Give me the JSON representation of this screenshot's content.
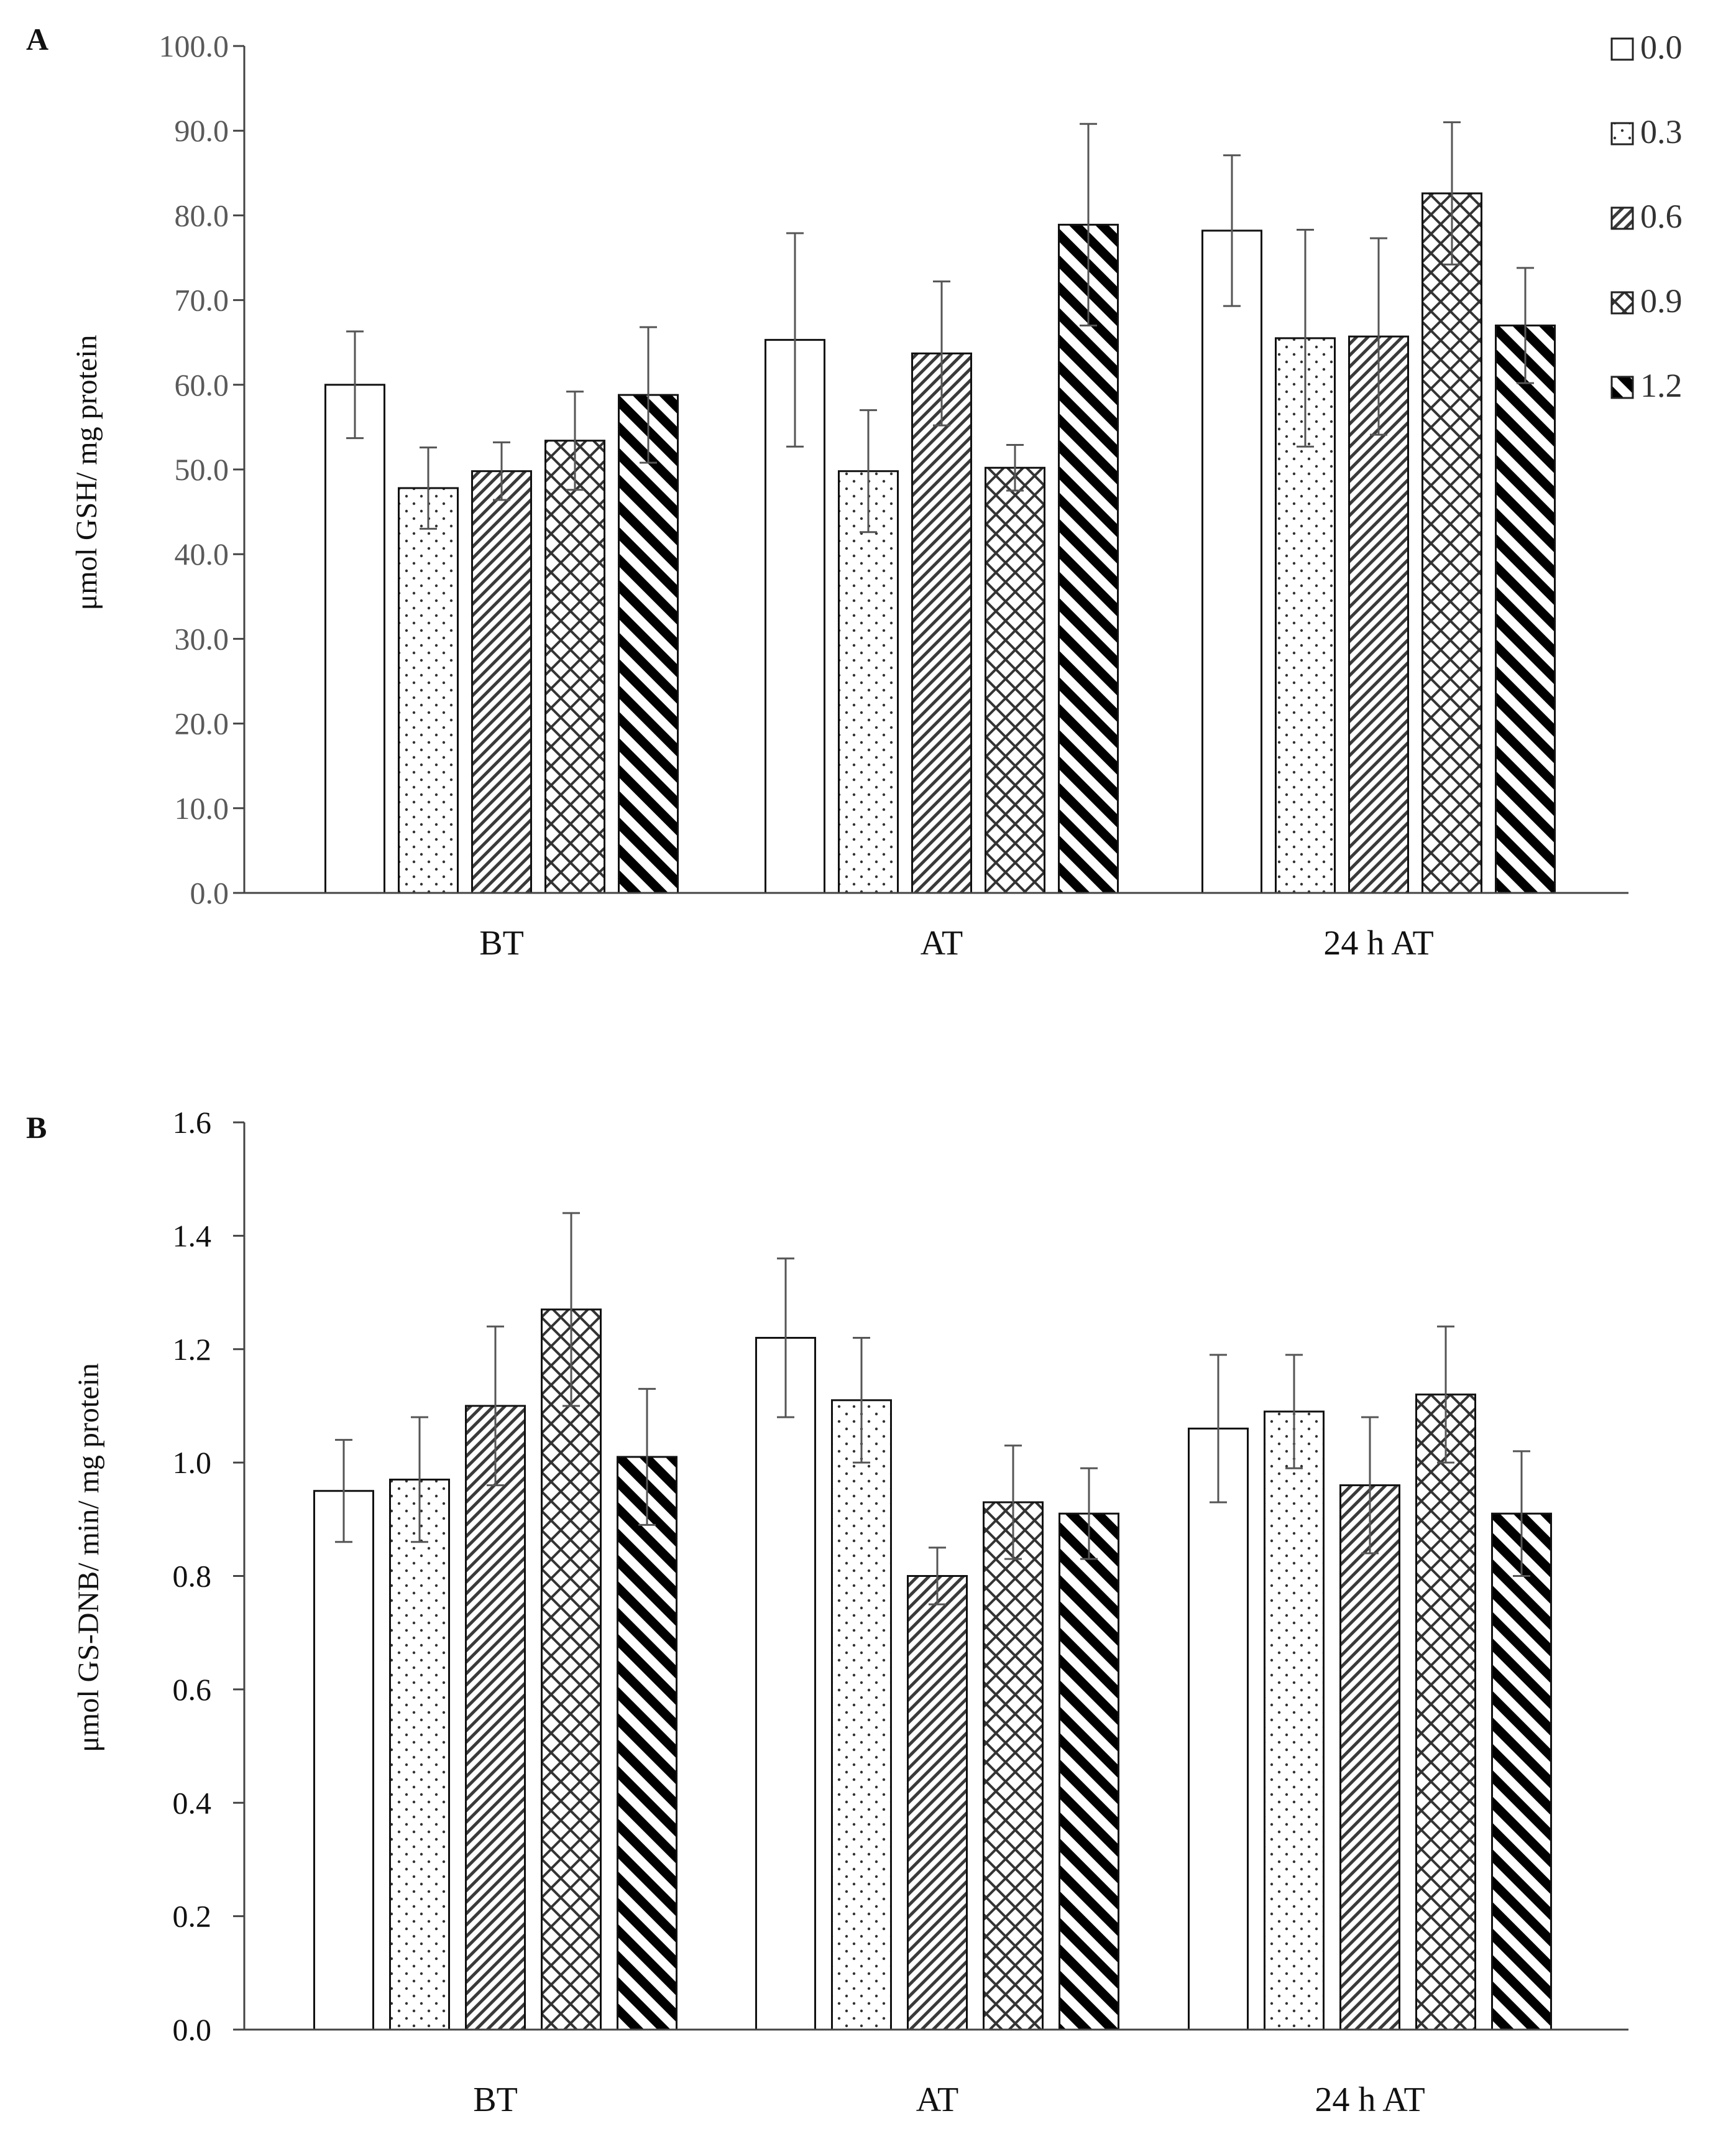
{
  "legend": {
    "entries": [
      {
        "label": "0.0",
        "pattern": "blank"
      },
      {
        "label": "0.3",
        "pattern": "dots"
      },
      {
        "label": "0.6",
        "pattern": "diag-thin"
      },
      {
        "label": "0.9",
        "pattern": "cross"
      },
      {
        "label": "1.2",
        "pattern": "diag-thick"
      }
    ]
  },
  "chart_data": [
    {
      "type": "bar",
      "panel_label": "A",
      "ylabel": "μmol GSH/ mg protein",
      "categories": [
        "BT",
        "AT",
        "24 h AT"
      ],
      "ylim": [
        0,
        100
      ],
      "yticks": [
        "0.0",
        "10.0",
        "20.0",
        "30.0",
        "40.0",
        "50.0",
        "60.0",
        "70.0",
        "80.0",
        "90.0",
        "100.0"
      ],
      "ytick_values": [
        0,
        10,
        20,
        30,
        40,
        50,
        60,
        70,
        80,
        90,
        100
      ],
      "series": [
        {
          "name": "0.0",
          "values": [
            60.0,
            65.3,
            78.2
          ],
          "errors": [
            6.3,
            12.6,
            8.9
          ]
        },
        {
          "name": "0.3",
          "values": [
            47.8,
            49.8,
            65.5
          ],
          "errors": [
            4.8,
            7.2,
            12.8
          ]
        },
        {
          "name": "0.6",
          "values": [
            49.8,
            63.7,
            65.7
          ],
          "errors": [
            3.4,
            8.5,
            11.6
          ]
        },
        {
          "name": "0.9",
          "values": [
            53.4,
            50.2,
            82.6
          ],
          "errors": [
            5.8,
            2.7,
            8.4
          ]
        },
        {
          "name": "1.2",
          "values": [
            58.8,
            78.9,
            67.0
          ],
          "errors": [
            8.0,
            11.9,
            6.8
          ]
        }
      ]
    },
    {
      "type": "bar",
      "panel_label": "B",
      "ylabel": "μmol GS-DNB/ min/ mg protein",
      "categories": [
        "BT",
        "AT",
        "24 h AT"
      ],
      "ylim": [
        0,
        1.6
      ],
      "yticks": [
        "0.0",
        "0.2",
        "0.4",
        "0.6",
        "0.8",
        "1.0",
        "1.2",
        "1.4",
        "1.6"
      ],
      "ytick_values": [
        0,
        0.2,
        0.4,
        0.6,
        0.8,
        1.0,
        1.2,
        1.4,
        1.6
      ],
      "series": [
        {
          "name": "0.0",
          "values": [
            0.95,
            1.22,
            1.06
          ],
          "errors": [
            0.09,
            0.14,
            0.13
          ]
        },
        {
          "name": "0.3",
          "values": [
            0.97,
            1.11,
            1.09
          ],
          "errors": [
            0.11,
            0.11,
            0.1
          ]
        },
        {
          "name": "0.6",
          "values": [
            1.1,
            0.8,
            0.96
          ],
          "errors": [
            0.14,
            0.05,
            0.12
          ]
        },
        {
          "name": "0.9",
          "values": [
            1.27,
            0.93,
            1.12
          ],
          "errors": [
            0.17,
            0.1,
            0.12
          ]
        },
        {
          "name": "1.2",
          "values": [
            1.01,
            0.91,
            0.91
          ],
          "errors": [
            0.12,
            0.08,
            0.11
          ]
        }
      ]
    }
  ]
}
